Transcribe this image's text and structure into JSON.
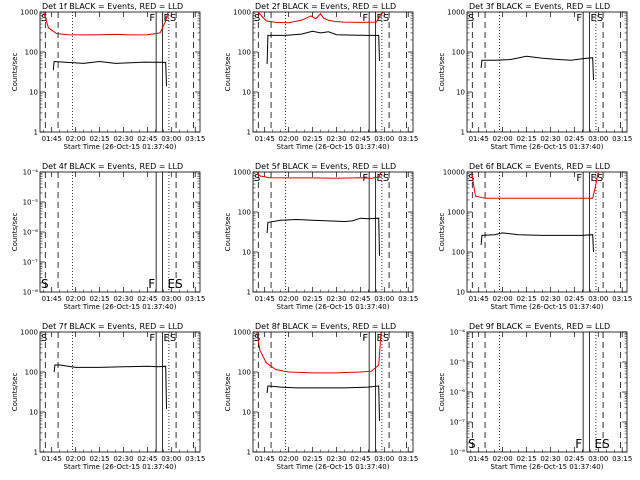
{
  "figure": {
    "x_ticks": [
      "01:45",
      "02:00",
      "02:15",
      "02:30",
      "02:45",
      "03:00",
      "03:15"
    ],
    "x_tick_minutes": [
      105,
      120,
      135,
      150,
      165,
      180,
      195
    ],
    "x_range_minutes": [
      97.67,
      198
    ],
    "marker_labels": [
      "S",
      "F",
      "ES"
    ]
  },
  "chart_data": [
    {
      "type": "line",
      "title": "Det 1f BLACK = Events, RED = LLD",
      "xlabel": "Start Time (26-Oct-15 01:37:40)",
      "ylabel": "Counts/sec",
      "yscale": "log",
      "ylim": [
        1,
        1000
      ],
      "y_ticks": [
        "1",
        "10",
        "100",
        "1000"
      ],
      "series": [
        {
          "color": "#000000",
          "x": [
            106,
            106.5,
            115,
            125,
            135,
            145,
            155,
            163,
            176.5,
            177
          ],
          "y": [
            35,
            58,
            55,
            52,
            58,
            52,
            54,
            56,
            55,
            14
          ]
        },
        {
          "color": "#dd0000",
          "x": [
            100,
            103,
            108,
            115,
            125,
            135,
            145,
            155,
            165,
            173,
            176.5,
            178
          ],
          "y": [
            1000,
            400,
            290,
            270,
            268,
            270,
            275,
            268,
            270,
            300,
            600,
            1000
          ]
        }
      ],
      "markers": {
        "dashed": [
          101,
          109,
          183,
          194
        ],
        "dotted": [
          118,
          178.5
        ],
        "solid": [
          170.5,
          174.5
        ]
      }
    },
    {
      "type": "line",
      "title": "Det 2f BLACK = Events, RED = LLD",
      "xlabel": "Start Time (26-Oct-15 01:37:40)",
      "ylabel": "Counts/sec",
      "yscale": "log",
      "ylim": [
        1,
        1000
      ],
      "y_ticks": [
        "1",
        "10",
        "100",
        "1000"
      ],
      "series": [
        {
          "color": "#000000",
          "x": [
            106.5,
            107,
            118,
            128,
            135,
            140,
            145,
            150,
            160,
            170,
            176.5,
            177
          ],
          "y": [
            50,
            260,
            260,
            280,
            330,
            300,
            320,
            270,
            265,
            260,
            260,
            60
          ]
        },
        {
          "color": "#dd0000",
          "x": [
            101,
            103,
            106,
            112,
            120,
            128,
            134,
            137,
            140,
            142,
            145,
            149,
            155,
            165,
            175,
            178,
            180
          ],
          "y": [
            1000,
            800,
            600,
            550,
            540,
            620,
            800,
            680,
            900,
            700,
            620,
            580,
            560,
            550,
            560,
            900,
            1000
          ]
        }
      ],
      "markers": {
        "dashed": [
          101,
          109,
          183,
          194
        ],
        "dotted": [
          118,
          178.5
        ],
        "solid": [
          170.5,
          174.5
        ]
      }
    },
    {
      "type": "line",
      "title": "Det 3f BLACK = Events, RED = LLD",
      "xlabel": "Start Time (26-Oct-15 01:37:40)",
      "ylabel": "Counts/sec",
      "yscale": "log",
      "ylim": [
        1,
        1000
      ],
      "y_ticks": [
        "1",
        "10",
        "100",
        "1000"
      ],
      "series": [
        {
          "color": "#000000",
          "x": [
            106.5,
            107,
            115,
            125,
            135,
            145,
            155,
            163,
            170,
            176.5,
            177
          ],
          "y": [
            40,
            62,
            62,
            65,
            78,
            70,
            65,
            62,
            68,
            72,
            20
          ]
        }
      ],
      "markers": {
        "dashed": [
          101,
          109,
          183,
          194
        ],
        "dotted": [
          118,
          178.5
        ],
        "solid": [
          170.5,
          174.5
        ]
      }
    },
    {
      "type": "line",
      "title": "Det 4f BLACK = Events, RED = LLD",
      "xlabel": "Start Time (26-Oct-15 01:37:40)",
      "ylabel": "Counts/sec",
      "yscale": "log",
      "ylim": [
        1e-08,
        0.0001
      ],
      "y_ticks": [
        "10⁻⁸",
        "10⁻⁷",
        "10⁻⁶",
        "10⁻⁵",
        "10⁻⁴"
      ],
      "series": [],
      "markers": {
        "dashed": [
          101,
          109,
          183,
          194
        ],
        "dotted": [
          118,
          178.5
        ],
        "solid": [
          170.5,
          174.5
        ]
      }
    },
    {
      "type": "line",
      "title": "Det 5f BLACK = Events, RED = LLD",
      "xlabel": "Start Time (26-Oct-15 01:37:40)",
      "ylabel": "Counts/sec",
      "yscale": "log",
      "ylim": [
        1,
        1000
      ],
      "y_ticks": [
        "1",
        "10",
        "100",
        "1000"
      ],
      "series": [
        {
          "color": "#000000",
          "x": [
            106.5,
            107,
            115,
            125,
            135,
            145,
            155,
            160,
            165,
            170,
            176.5,
            177
          ],
          "y": [
            30,
            55,
            62,
            65,
            62,
            60,
            58,
            60,
            70,
            68,
            70,
            8
          ]
        },
        {
          "color": "#dd0000",
          "x": [
            100,
            102,
            108,
            120,
            135,
            150,
            165,
            172,
            176.5,
            178
          ],
          "y": [
            1000,
            800,
            720,
            710,
            710,
            700,
            720,
            700,
            750,
            1000
          ]
        }
      ],
      "markers": {
        "dashed": [
          101,
          109,
          183,
          194
        ],
        "dotted": [
          118,
          178.5
        ],
        "solid": [
          170.5,
          174.5
        ]
      }
    },
    {
      "type": "line",
      "title": "Det 6f BLACK = Events, RED = LLD",
      "xlabel": "Start Time (26-Oct-15 01:37:40)",
      "ylabel": "Counts/sec",
      "yscale": "log",
      "ylim": [
        10,
        10000
      ],
      "y_ticks": [
        "10",
        "100",
        "1000",
        "10000"
      ],
      "series": [
        {
          "color": "#000000",
          "x": [
            106.5,
            107,
            115,
            120,
            130,
            145,
            160,
            170,
            176.5,
            177
          ],
          "y": [
            150,
            260,
            270,
            300,
            270,
            260,
            260,
            260,
            270,
            100
          ]
        },
        {
          "color": "#dd0000",
          "x": [
            100.5,
            103,
            109,
            120,
            140,
            160,
            176.5,
            178,
            180
          ],
          "y": [
            10000,
            2500,
            2200,
            2200,
            2200,
            2200,
            2200,
            4000,
            10000
          ]
        }
      ],
      "markers": {
        "dashed": [
          101,
          109,
          183,
          194
        ],
        "dotted": [
          118,
          178.5
        ],
        "solid": [
          170.5,
          174.5
        ]
      }
    },
    {
      "type": "line",
      "title": "Det 7f BLACK = Events, RED = LLD",
      "xlabel": "Start Time (26-Oct-15 01:37:40)",
      "ylabel": "Counts/sec",
      "yscale": "log",
      "ylim": [
        1,
        1000
      ],
      "y_ticks": [
        "1",
        "10",
        "100",
        "1000"
      ],
      "series": [
        {
          "color": "#000000",
          "x": [
            106.5,
            107,
            110,
            120,
            135,
            150,
            165,
            172,
            176.5,
            177
          ],
          "y": [
            100,
            150,
            150,
            130,
            130,
            135,
            140,
            135,
            140,
            12
          ]
        }
      ],
      "markers": {
        "dashed": [
          101,
          109,
          183,
          194
        ],
        "dotted": [
          118,
          178.5
        ],
        "solid": [
          170.5,
          174.5
        ]
      }
    },
    {
      "type": "line",
      "title": "Det 8f BLACK = Events, RED = LLD",
      "xlabel": "Start Time (26-Oct-15 01:37:40)",
      "ylabel": "Counts/sec",
      "yscale": "log",
      "ylim": [
        1,
        1000
      ],
      "y_ticks": [
        "1",
        "10",
        "100",
        "1000"
      ],
      "series": [
        {
          "color": "#000000",
          "x": [
            106.5,
            107,
            115,
            125,
            140,
            155,
            170,
            176.5,
            177
          ],
          "y": [
            30,
            45,
            42,
            40,
            40,
            40,
            42,
            45,
            6
          ]
        },
        {
          "color": "#dd0000",
          "x": [
            100,
            102,
            106,
            112,
            120,
            135,
            150,
            165,
            172,
            176.5,
            178
          ],
          "y": [
            1000,
            350,
            170,
            115,
            100,
            95,
            95,
            100,
            105,
            150,
            1000
          ]
        }
      ],
      "markers": {
        "dashed": [
          101,
          109,
          183,
          194
        ],
        "dotted": [
          118,
          178.5
        ],
        "solid": [
          170.5,
          174.5
        ]
      }
    },
    {
      "type": "line",
      "title": "Det 9f BLACK = Events, RED = LLD",
      "xlabel": "Start Time (26-Oct-15 01:37:40)",
      "ylabel": "Counts/sec",
      "yscale": "log",
      "ylim": [
        1e-08,
        0.0001
      ],
      "y_ticks": [
        "10⁻⁸",
        "10⁻⁷",
        "10⁻⁶",
        "10⁻⁵",
        "10⁻⁴"
      ],
      "series": [],
      "markers": {
        "dashed": [
          101,
          109,
          183,
          194
        ],
        "dotted": [
          118,
          178.5
        ],
        "solid": [
          170.5,
          174.5
        ]
      }
    }
  ]
}
